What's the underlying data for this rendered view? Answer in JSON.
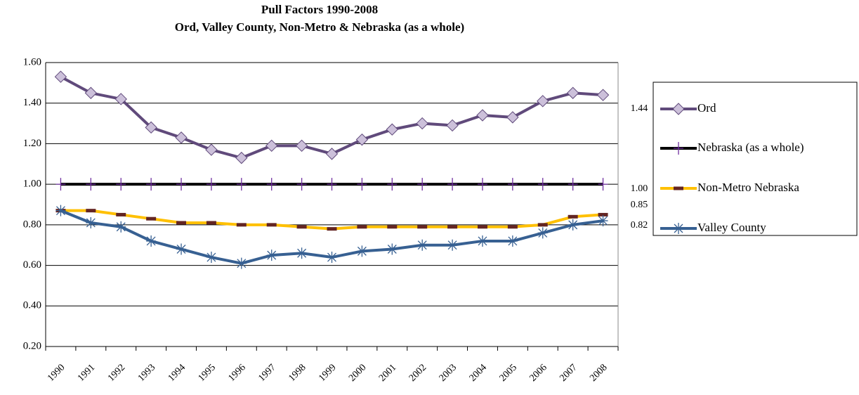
{
  "chart_data": {
    "type": "line",
    "title": "Pull Factors 1990-2008",
    "subtitle": "Ord, Valley County, Non-Metro & Nebraska (as a whole)",
    "categories": [
      "1990",
      "1991",
      "1992",
      "1993",
      "1994",
      "1995",
      "1996",
      "1997",
      "1998",
      "1999",
      "2000",
      "2001",
      "2002",
      "2003",
      "2004",
      "2005",
      "2006",
      "2007",
      "2008"
    ],
    "series": [
      {
        "name": "Ord",
        "color": "#604a7b",
        "marker": "diamond",
        "marker_color": "#ccc0da",
        "values": [
          1.53,
          1.45,
          1.42,
          1.28,
          1.23,
          1.17,
          1.13,
          1.19,
          1.19,
          1.15,
          1.22,
          1.27,
          1.3,
          1.29,
          1.34,
          1.33,
          1.41,
          1.45,
          1.44
        ],
        "value_labels": [
          null,
          null,
          null,
          null,
          null,
          null,
          null,
          null,
          null,
          null,
          null,
          null,
          null,
          null,
          null,
          null,
          null,
          null,
          "1.44"
        ]
      },
      {
        "name": "Nebraska (as a whole)",
        "color": "#000000",
        "marker": "plus",
        "marker_color": "#7030a0",
        "values": [
          1,
          1,
          1,
          1,
          1,
          1,
          1,
          1,
          1,
          1,
          1,
          1,
          1,
          1,
          1,
          1,
          1,
          1,
          1
        ],
        "value_labels": [
          null,
          null,
          null,
          null,
          null,
          null,
          null,
          null,
          null,
          null,
          null,
          null,
          null,
          null,
          null,
          null,
          null,
          null,
          "1.00"
        ]
      },
      {
        "name": "Non-Metro Nebraska",
        "color": "#ffc000",
        "marker": "dash",
        "marker_color": "#632523",
        "values": [
          0.87,
          0.87,
          0.85,
          0.83,
          0.81,
          0.81,
          0.8,
          0.8,
          0.79,
          0.78,
          0.79,
          0.79,
          0.79,
          0.79,
          0.79,
          0.79,
          0.8,
          0.84,
          0.85
        ],
        "value_labels": [
          null,
          null,
          null,
          null,
          null,
          null,
          null,
          null,
          null,
          null,
          null,
          null,
          null,
          null,
          null,
          null,
          null,
          null,
          "0.85"
        ]
      },
      {
        "name": "Valley County",
        "color": "#376092",
        "marker": "star",
        "marker_color": "#376092",
        "values": [
          0.87,
          0.81,
          0.79,
          0.72,
          0.68,
          0.64,
          0.61,
          0.65,
          0.66,
          0.64,
          0.67,
          0.68,
          0.7,
          0.7,
          0.72,
          0.72,
          0.76,
          0.8,
          0.82
        ],
        "value_labels": [
          null,
          null,
          null,
          null,
          null,
          null,
          null,
          null,
          null,
          null,
          null,
          null,
          null,
          null,
          null,
          null,
          null,
          null,
          "0.82"
        ]
      }
    ],
    "ylim": [
      0.2,
      1.6
    ],
    "yticks": [
      {
        "value": 0.2,
        "label": "0.20"
      },
      {
        "value": 0.4,
        "label": "0.40"
      },
      {
        "value": 0.6,
        "label": "0.60"
      },
      {
        "value": 0.8,
        "label": "0.80"
      },
      {
        "value": 1,
        "label": "1.00"
      },
      {
        "value": 1.2,
        "label": "1.20"
      },
      {
        "value": 1.4,
        "label": "1.40"
      },
      {
        "value": 1.6,
        "label": "1.60"
      }
    ],
    "grid": true,
    "legend": "right"
  }
}
